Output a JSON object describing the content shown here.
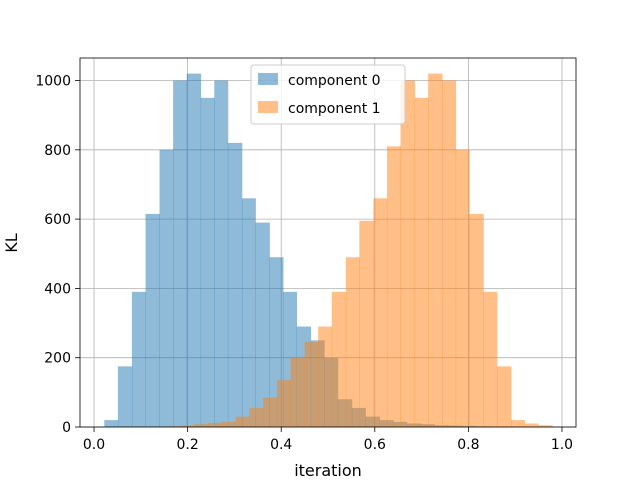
{
  "chart_data": {
    "type": "bar",
    "subtype": "histogram",
    "xlabel": "iteration",
    "ylabel": "KL",
    "xlim": [
      -0.03,
      1.03
    ],
    "ylim": [
      0,
      1065
    ],
    "xticks": [
      0.0,
      0.2,
      0.4,
      0.6,
      0.8,
      1.0
    ],
    "xtick_labels": [
      "0.0",
      "0.2",
      "0.4",
      "0.6",
      "0.8",
      "1.0"
    ],
    "yticks": [
      0,
      200,
      400,
      600,
      800,
      1000
    ],
    "ytick_labels": [
      "0",
      "200",
      "400",
      "600",
      "800",
      "1000"
    ],
    "grid": true,
    "legend_position": "top-center",
    "series": [
      {
        "name": "component 0",
        "color": "#1f77b4",
        "opacity": 0.5,
        "bin_edges": [
          0.022,
          0.051,
          0.081,
          0.11,
          0.14,
          0.169,
          0.198,
          0.228,
          0.257,
          0.286,
          0.316,
          0.345,
          0.375,
          0.404,
          0.433,
          0.463,
          0.492,
          0.521,
          0.551,
          0.58,
          0.61,
          0.639,
          0.668,
          0.698,
          0.727,
          0.756,
          0.786,
          0.815,
          0.845,
          0.874,
          0.903,
          0.933
        ],
        "values": [
          20,
          175,
          390,
          615,
          800,
          1000,
          1020,
          950,
          1000,
          820,
          660,
          590,
          490,
          390,
          290,
          250,
          200,
          80,
          55,
          30,
          20,
          15,
          10,
          8,
          5,
          4,
          3,
          2,
          1,
          1,
          1
        ]
      },
      {
        "name": "component 1",
        "color": "#ff7f0e",
        "opacity": 0.5,
        "bin_edges": [
          0.067,
          0.097,
          0.126,
          0.156,
          0.185,
          0.214,
          0.244,
          0.273,
          0.303,
          0.332,
          0.361,
          0.391,
          0.42,
          0.45,
          0.479,
          0.508,
          0.538,
          0.567,
          0.597,
          0.626,
          0.655,
          0.685,
          0.714,
          0.744,
          0.773,
          0.802,
          0.832,
          0.861,
          0.891,
          0.92,
          0.949,
          0.979
        ],
        "values": [
          1,
          1,
          1,
          2,
          4,
          8,
          12,
          15,
          30,
          55,
          85,
          135,
          200,
          245,
          290,
          390,
          490,
          595,
          660,
          810,
          1000,
          950,
          1020,
          1000,
          800,
          615,
          390,
          175,
          20,
          10,
          5
        ]
      }
    ]
  }
}
